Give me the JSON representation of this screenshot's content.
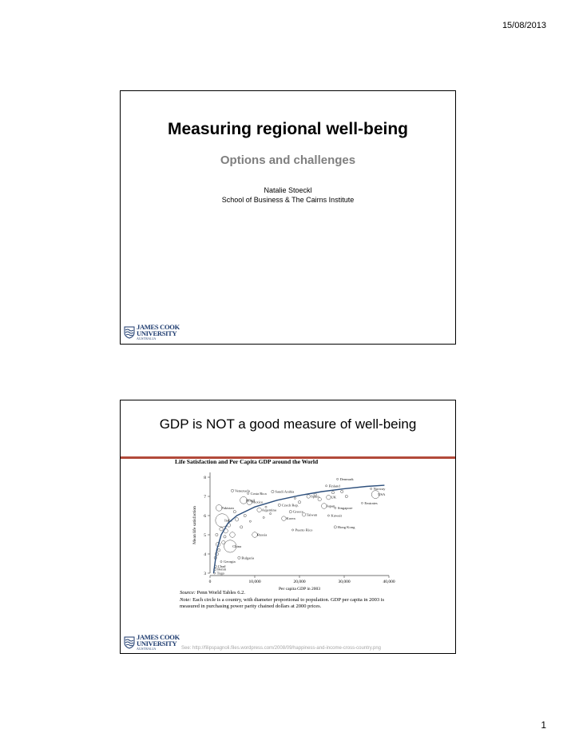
{
  "header": {
    "date": "15/08/2013"
  },
  "footer": {
    "page_number": "1"
  },
  "slide1": {
    "title": "Measuring regional well-being",
    "subtitle": "Options and challenges",
    "author": "Natalie Stoeckl",
    "affiliation": "School of Business & The Cairns Institute"
  },
  "logo": {
    "line1": "JAMES COOK",
    "line2": "UNIVERSITY",
    "line3": "AUSTRALIA",
    "color": "#1c3a6e"
  },
  "slide2": {
    "title": "GDP is NOT a good measure of well-being",
    "source_label": "Source:",
    "source_text": "Penn World Tables 6.2.",
    "note_label": "Note:",
    "note_text_1": "Each circle is a country, with diameter proportional to population. GDP per capita in 2003 is",
    "note_text_2": "measured in purchasing power parity chained dollars at 2000 prices.",
    "see": "See:  http://filipspagnoli.files.wordpress.com/2008/09/happiness-and-income-cross-country.png"
  },
  "chart_data": {
    "type": "scatter",
    "title": "Life Satisfaction and Per Capita GDP around the World",
    "xlabel": "Per capita GDP in 2003",
    "ylabel": "Mean life satisfaction",
    "xlim": [
      0,
      40000
    ],
    "ylim": [
      3,
      8
    ],
    "x_ticks": [
      0,
      10000,
      20000,
      30000,
      40000
    ],
    "x_tick_labels": [
      "0",
      "10,000",
      "20,000",
      "30,000",
      "40,000"
    ],
    "y_ticks": [
      3,
      4,
      5,
      6,
      7,
      8
    ],
    "series_color": "#2d4f7c",
    "points": [
      {
        "label": "Denmark",
        "x": 28500,
        "y": 7.9,
        "size": 2
      },
      {
        "label": "Finland",
        "x": 26000,
        "y": 7.55,
        "size": 2
      },
      {
        "label": "Norway",
        "x": 36000,
        "y": 7.4,
        "size": 2
      },
      {
        "label": "USA",
        "x": 37000,
        "y": 7.1,
        "size": 9
      },
      {
        "label": "Saudi Arabia",
        "x": 14000,
        "y": 7.25,
        "size": 3
      },
      {
        "label": "Venezuela",
        "x": 5000,
        "y": 7.3,
        "size": 3
      },
      {
        "label": "Costa Rica",
        "x": 8500,
        "y": 7.15,
        "size": 2
      },
      {
        "label": "Spain",
        "x": 22000,
        "y": 7.0,
        "size": 4
      },
      {
        "label": "UK",
        "x": 26500,
        "y": 6.95,
        "size": 5
      },
      {
        "label": "Brazil",
        "x": 7500,
        "y": 6.8,
        "size": 8
      },
      {
        "label": "Mexico",
        "x": 8800,
        "y": 6.7,
        "size": 6
      },
      {
        "label": "Czech Rep.",
        "x": 15500,
        "y": 6.55,
        "size": 3
      },
      {
        "label": "Japan",
        "x": 25500,
        "y": 6.5,
        "size": 6
      },
      {
        "label": "Emirates",
        "x": 34000,
        "y": 6.65,
        "size": 1
      },
      {
        "label": "Singapore",
        "x": 28000,
        "y": 6.4,
        "size": 2
      },
      {
        "label": "Pakistan",
        "x": 2000,
        "y": 6.4,
        "size": 7
      },
      {
        "label": "Argentina",
        "x": 11000,
        "y": 6.3,
        "size": 5
      },
      {
        "label": "Greece",
        "x": 18000,
        "y": 6.2,
        "size": 3
      },
      {
        "label": "Taiwan",
        "x": 21000,
        "y": 6.05,
        "size": 4
      },
      {
        "label": "Kuwait",
        "x": 26500,
        "y": 6.0,
        "size": 2
      },
      {
        "label": "India",
        "x": 2700,
        "y": 5.75,
        "size": 15
      },
      {
        "label": "Korea",
        "x": 16500,
        "y": 5.85,
        "size": 5
      },
      {
        "label": "Hong Kong",
        "x": 28000,
        "y": 5.4,
        "size": 3
      },
      {
        "label": "Puerto Rico",
        "x": 18500,
        "y": 5.25,
        "size": 2
      },
      {
        "label": "Russia",
        "x": 10000,
        "y": 5.0,
        "size": 6
      },
      {
        "label": "China",
        "x": 4500,
        "y": 4.4,
        "size": 14
      },
      {
        "label": "Bulgaria",
        "x": 6500,
        "y": 3.8,
        "size": 3
      },
      {
        "label": "Georgia",
        "x": 2500,
        "y": 3.6,
        "size": 2
      },
      {
        "label": "Chad",
        "x": 1200,
        "y": 3.35,
        "size": 3
      },
      {
        "label": "Benin",
        "x": 1100,
        "y": 3.2,
        "size": 3
      },
      {
        "label": "Togo",
        "x": 1000,
        "y": 3.0,
        "size": 2
      }
    ],
    "extra_points": [
      {
        "x": 1500,
        "y": 4.0,
        "size": 4
      },
      {
        "x": 2000,
        "y": 4.2,
        "size": 3
      },
      {
        "x": 1200,
        "y": 3.8,
        "size": 3
      },
      {
        "x": 3000,
        "y": 4.6,
        "size": 4
      },
      {
        "x": 3500,
        "y": 5.2,
        "size": 5
      },
      {
        "x": 4200,
        "y": 5.5,
        "size": 4
      },
      {
        "x": 5000,
        "y": 5.0,
        "size": 6
      },
      {
        "x": 6000,
        "y": 5.8,
        "size": 4
      },
      {
        "x": 7000,
        "y": 5.4,
        "size": 3
      },
      {
        "x": 7800,
        "y": 6.0,
        "size": 3
      },
      {
        "x": 9000,
        "y": 5.7,
        "size": 2
      },
      {
        "x": 12000,
        "y": 5.9,
        "size": 2
      },
      {
        "x": 13500,
        "y": 6.1,
        "size": 2
      },
      {
        "x": 20000,
        "y": 6.7,
        "size": 3
      },
      {
        "x": 23500,
        "y": 7.1,
        "size": 3
      },
      {
        "x": 24500,
        "y": 6.85,
        "size": 4
      },
      {
        "x": 27500,
        "y": 7.2,
        "size": 3
      },
      {
        "x": 29500,
        "y": 7.25,
        "size": 3
      },
      {
        "x": 30500,
        "y": 7.0,
        "size": 3
      },
      {
        "x": 2500,
        "y": 5.3,
        "size": 4
      },
      {
        "x": 1800,
        "y": 4.5,
        "size": 5
      },
      {
        "x": 3300,
        "y": 4.9,
        "size": 3
      },
      {
        "x": 5500,
        "y": 6.2,
        "size": 3
      },
      {
        "x": 1500,
        "y": 5.0,
        "size": 3
      },
      {
        "x": 12500,
        "y": 6.45,
        "size": 2
      },
      {
        "x": 19000,
        "y": 6.9,
        "size": 2
      }
    ],
    "fit_line": [
      {
        "x": 800,
        "y": 3.0
      },
      {
        "x": 1500,
        "y": 4.2
      },
      {
        "x": 2500,
        "y": 5.0
      },
      {
        "x": 4000,
        "y": 5.6
      },
      {
        "x": 6000,
        "y": 6.0
      },
      {
        "x": 10000,
        "y": 6.45
      },
      {
        "x": 15000,
        "y": 6.8
      },
      {
        "x": 20000,
        "y": 7.05
      },
      {
        "x": 25000,
        "y": 7.25
      },
      {
        "x": 30000,
        "y": 7.4
      },
      {
        "x": 35000,
        "y": 7.52
      },
      {
        "x": 39000,
        "y": 7.58
      }
    ]
  }
}
